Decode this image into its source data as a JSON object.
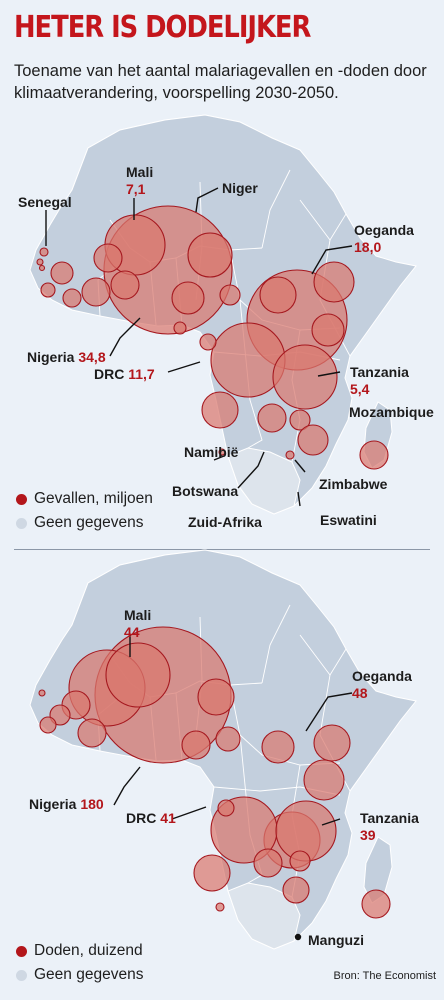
{
  "title": "HETER IS DODELIJKER",
  "subtitle": "Toename van het aantal malariagevallen en -doden door klimaatverandering, voorspelling 2030-2050.",
  "colors": {
    "accent": "#c4161c",
    "bubble_fill": "#d9796f",
    "bubble_stroke": "#a5181f",
    "land": "#c3cfdd",
    "no_data": "#dde4ec",
    "background": "#ebf1f8"
  },
  "map_cases": {
    "labels": {
      "mali_name": "Mali",
      "mali_value": "7,1",
      "niger": "Niger",
      "senegal": "Senegal",
      "oeganda_name": "Oeganda",
      "oeganda_value": "18,0",
      "nigeria_name": "Nigeria",
      "nigeria_value": "34,8",
      "drc_name": "DRC",
      "drc_value": "11,7",
      "tanzania_name": "Tanzania",
      "tanzania_value": "5,4",
      "mozambique": "Mozambique",
      "namibie": "Namibië",
      "botswana": "Botswana",
      "zimbabwe": "Zimbabwe",
      "eswatini": "Eswatini",
      "zuid_afrika": "Zuid-Afrika"
    },
    "legend": {
      "measure": "Gevallen, miljoen",
      "no_data": "Geen gegevens"
    }
  },
  "map_deaths": {
    "labels": {
      "mali_name": "Mali",
      "mali_value": "44",
      "oeganda_name": "Oeganda",
      "oeganda_value": "48",
      "nigeria_name": "Nigeria",
      "nigeria_value": "180",
      "drc_name": "DRC",
      "drc_value": "41",
      "tanzania_name": "Tanzania",
      "tanzania_value": "39",
      "manguzi": "Manguzi"
    },
    "legend": {
      "measure": "Doden, duizend",
      "no_data": "Geen gegevens"
    }
  },
  "source": "Bron: The Economist"
}
